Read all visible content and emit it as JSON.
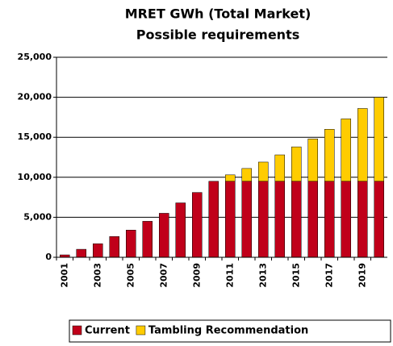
{
  "chart_data": {
    "type": "stacked_bar",
    "title": "MRET GWh (Total Market)",
    "subtitle": "Possible requirements",
    "categories": [
      "2001",
      null,
      "2003",
      null,
      "2005",
      null,
      "2007",
      null,
      "2009",
      null,
      "2011",
      null,
      "2013",
      null,
      "2015",
      null,
      "2017",
      null,
      "2019",
      null
    ],
    "series": [
      {
        "name": "Current",
        "color": "#c0001a",
        "values": [
          300,
          1000,
          1700,
          2600,
          3400,
          4500,
          5500,
          6800,
          8100,
          9500,
          9500,
          9500,
          9500,
          9500,
          9500,
          9500,
          9500,
          9500,
          9500,
          9500
        ]
      },
      {
        "name": "Tambling Recommendation",
        "color": "#ffcc00",
        "values": [
          0,
          0,
          0,
          0,
          0,
          0,
          0,
          0,
          0,
          0,
          800,
          1600,
          2400,
          3300,
          4300,
          5300,
          6500,
          7800,
          9100,
          10500
        ]
      }
    ],
    "ylim": [
      0,
      25000
    ],
    "yticks": [
      0,
      {
        "value": 5000,
        "label": "5,000"
      },
      {
        "value": 10000,
        "label": "10,000"
      },
      {
        "value": 15000,
        "label": "15,000"
      },
      {
        "value": 20000,
        "label": "20,000"
      },
      {
        "value": 25000,
        "label": "25,000"
      }
    ],
    "grid": true,
    "legend": "bottom"
  }
}
